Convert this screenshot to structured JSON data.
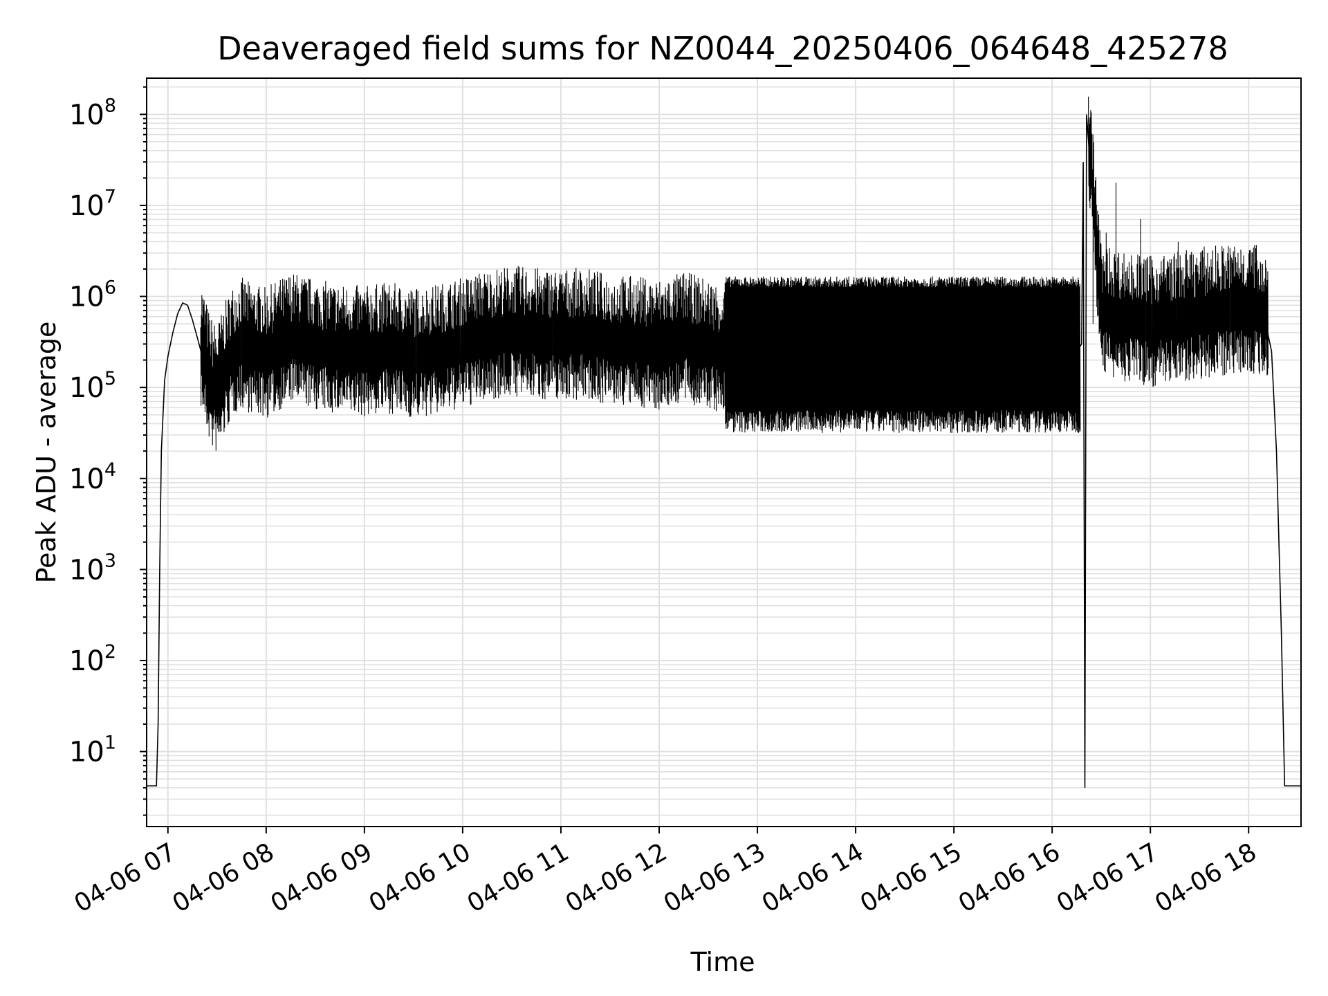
{
  "chart_data": {
    "type": "line",
    "title": "Deaveraged field sums for NZ0044_20250406_064648_425278",
    "xlabel": "Time",
    "ylabel": "Peak ADU - average",
    "y_scale": "log",
    "ylim": [
      1.5,
      250000000
    ],
    "xlim": [
      "2025-04-06 06:47",
      "2025-04-06 18:32"
    ],
    "grid": true,
    "line_color": "#000000",
    "grid_color": "#e0e0e0",
    "x_ticks": [
      {
        "label": "04-06 07",
        "t": "2025-04-06 07:00"
      },
      {
        "label": "04-06 08",
        "t": "2025-04-06 08:00"
      },
      {
        "label": "04-06 09",
        "t": "2025-04-06 09:00"
      },
      {
        "label": "04-06 10",
        "t": "2025-04-06 10:00"
      },
      {
        "label": "04-06 11",
        "t": "2025-04-06 11:00"
      },
      {
        "label": "04-06 12",
        "t": "2025-04-06 12:00"
      },
      {
        "label": "04-06 13",
        "t": "2025-04-06 13:00"
      },
      {
        "label": "04-06 14",
        "t": "2025-04-06 14:00"
      },
      {
        "label": "04-06 15",
        "t": "2025-04-06 15:00"
      },
      {
        "label": "04-06 16",
        "t": "2025-04-06 16:00"
      },
      {
        "label": "04-06 17",
        "t": "2025-04-06 17:00"
      },
      {
        "label": "04-06 18",
        "t": "2025-04-06 18:00"
      }
    ],
    "y_ticks": [
      {
        "base": "10",
        "exp": "1",
        "value": 10
      },
      {
        "base": "10",
        "exp": "2",
        "value": 100
      },
      {
        "base": "10",
        "exp": "3",
        "value": 1000
      },
      {
        "base": "10",
        "exp": "4",
        "value": 10000
      },
      {
        "base": "10",
        "exp": "5",
        "value": 100000
      },
      {
        "base": "10",
        "exp": "6",
        "value": 1000000
      },
      {
        "base": "10",
        "exp": "7",
        "value": 10000000
      },
      {
        "base": "10",
        "exp": "8",
        "value": 100000000
      }
    ],
    "series": [
      {
        "x": [
          "2025-04-06 06:47",
          "2025-04-06 06:53",
          "2025-04-06 06:54",
          "2025-04-06 06:55",
          "2025-04-06 06:56",
          "2025-04-06 06:57",
          "2025-04-06 06:58",
          "2025-04-06 07:00",
          "2025-04-06 07:03",
          "2025-04-06 07:06",
          "2025-04-06 07:09",
          "2025-04-06 07:12",
          "2025-04-06 07:15",
          "2025-04-06 07:18",
          "2025-04-06 07:21",
          "2025-04-06 07:24",
          "2025-04-06 07:27",
          "2025-04-06 07:30",
          "2025-04-06 07:35",
          "2025-04-06 07:40",
          "2025-04-06 07:45",
          "2025-04-06 07:50",
          "2025-04-06 08:00",
          "2025-04-06 08:15",
          "2025-04-06 08:30",
          "2025-04-06 08:45",
          "2025-04-06 09:00",
          "2025-04-06 09:15",
          "2025-04-06 09:30",
          "2025-04-06 09:45",
          "2025-04-06 10:00",
          "2025-04-06 10:15",
          "2025-04-06 10:30",
          "2025-04-06 10:45",
          "2025-04-06 11:00",
          "2025-04-06 11:15",
          "2025-04-06 11:30",
          "2025-04-06 11:45",
          "2025-04-06 12:00",
          "2025-04-06 12:15",
          "2025-04-06 12:30",
          "2025-04-06 12:45",
          "2025-04-06 13:00",
          "2025-04-06 13:30",
          "2025-04-06 14:00",
          "2025-04-06 14:30",
          "2025-04-06 15:00",
          "2025-04-06 15:30",
          "2025-04-06 16:00",
          "2025-04-06 16:15",
          "2025-04-06 16:18",
          "2025-04-06 16:19",
          "2025-04-06 16:20",
          "2025-04-06 16:21",
          "2025-04-06 16:30",
          "2025-04-06 16:45",
          "2025-04-06 17:00",
          "2025-04-06 17:15",
          "2025-04-06 17:30",
          "2025-04-06 17:45",
          "2025-04-06 18:00",
          "2025-04-06 18:10",
          "2025-04-06 18:14",
          "2025-04-06 18:17",
          "2025-04-06 18:20",
          "2025-04-06 18:22",
          "2025-04-06 18:32"
        ],
        "y": [
          4.2,
          4.2,
          20,
          1000,
          20000,
          50000,
          120000,
          220000,
          400000,
          650000,
          850000,
          800000,
          550000,
          350000,
          220000,
          130000,
          90000,
          80000,
          140000,
          220000,
          260000,
          230000,
          200000,
          300000,
          250000,
          220000,
          210000,
          230000,
          200000,
          220000,
          260000,
          320000,
          350000,
          330000,
          320000,
          330000,
          280000,
          270000,
          250000,
          300000,
          250000,
          200000,
          180000,
          220000,
          200000,
          230000,
          210000,
          200000,
          230000,
          250000,
          300000,
          30000000,
          4,
          100000000,
          600000,
          500000,
          450000,
          500000,
          550000,
          600000,
          650000,
          550000,
          250000,
          20000,
          200,
          4.2,
          4.2
        ]
      }
    ]
  }
}
